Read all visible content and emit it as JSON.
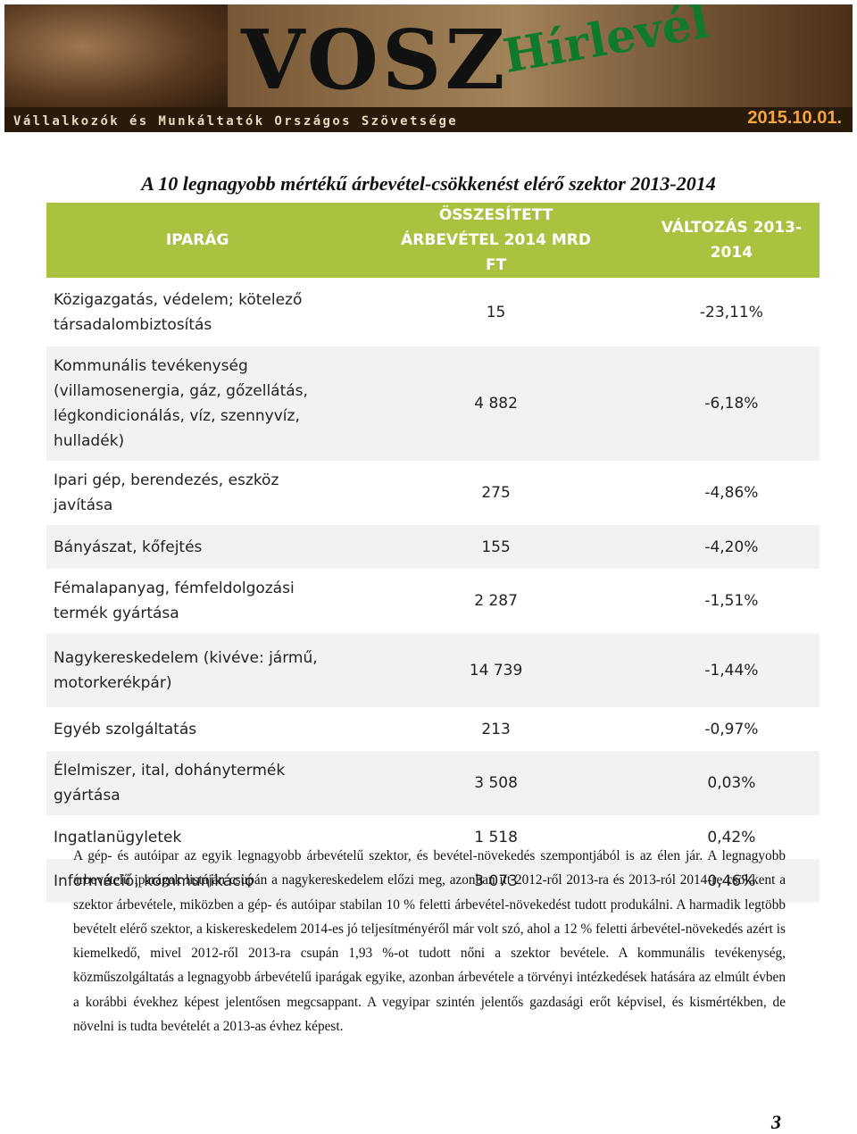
{
  "header": {
    "logo": "VOSZ",
    "newsletter": "Hírlevél",
    "organization": "Vállalkozók és Munkáltatók Országos Szövetsége",
    "date": "2015.10.01."
  },
  "title": "A 10 legnagyobb mértékű árbevétel-csökkenést elérő szektor 2013-2014",
  "table": {
    "headers": [
      "IPARÁG",
      "ÖSSZESÍTETT ÁRBEVÉTEL 2014 MRD FT",
      "VÁLTOZÁS 2013-2014"
    ],
    "rows": [
      [
        "Közigazgatás, védelem; kötelező társadalombiztosítás",
        "15",
        "-23,11%"
      ],
      [
        "Kommunális tevékenység (villamosenergia, gáz, gőzellátás, légkondicionálás, víz, szennyvíz, hulladék)",
        "4 882",
        "-6,18%"
      ],
      [
        "Ipari gép, berendezés, eszköz javítása",
        "275",
        "-4,86%"
      ],
      [
        "Bányászat, kőfejtés",
        "155",
        "-4,20%"
      ],
      [
        "Fémalapanyag, fémfeldolgozási termék gyártása",
        "2 287",
        "-1,51%"
      ],
      [
        "Nagykereskedelem (kivéve: jármű, motorkerékpár)",
        "14 739",
        "-1,44%"
      ],
      [
        "Egyéb szolgáltatás",
        "213",
        "-0,97%"
      ],
      [
        "Élelmiszer, ital, dohánytermék gyártása",
        "3 508",
        "0,03%"
      ],
      [
        "Ingatlanügyletek",
        "1 518",
        "0,42%"
      ],
      [
        "Információ, kommunikáció",
        "3 073",
        "0,46%"
      ]
    ]
  },
  "paragraph": "A gép- és autóipar az egyik legnagyobb árbevételű szektor, és bevétel-növekedés szempontjából is az élen jár. A legnagyobb árbevételű iparágak listáján csupán a nagykereskedelem előzi meg, azonban itt 2012-ről 2013-ra és 2013-ról 2014-re csökkent a szektor árbevétele, miközben a gép- és autóipar stabilan 10 % feletti árbevétel-növekedést tudott produkálni. A harmadik legtöbb bevételt elérő szektor, a kiskereskedelem 2014-es jó teljesítményéről már volt szó, ahol a 12 % feletti árbevétel-növekedés azért is kiemelkedő, mivel 2012-ről 2013-ra csupán 1,93 %-ot tudott nőni a szektor bevétele. A kommunális tevékenység, közműszolgáltatás a legnagyobb árbevételű iparágak egyike, azonban árbevétele a törvényi intézkedések hatására az elmúlt évben a korábbi évekhez képest jelentősen megcsappant. A vegyipar szintén jelentős gazdasági erőt képvisel, és kismértékben, de növelni is tudta bevételét a 2013-as évhez képest.",
  "page_number": "3"
}
